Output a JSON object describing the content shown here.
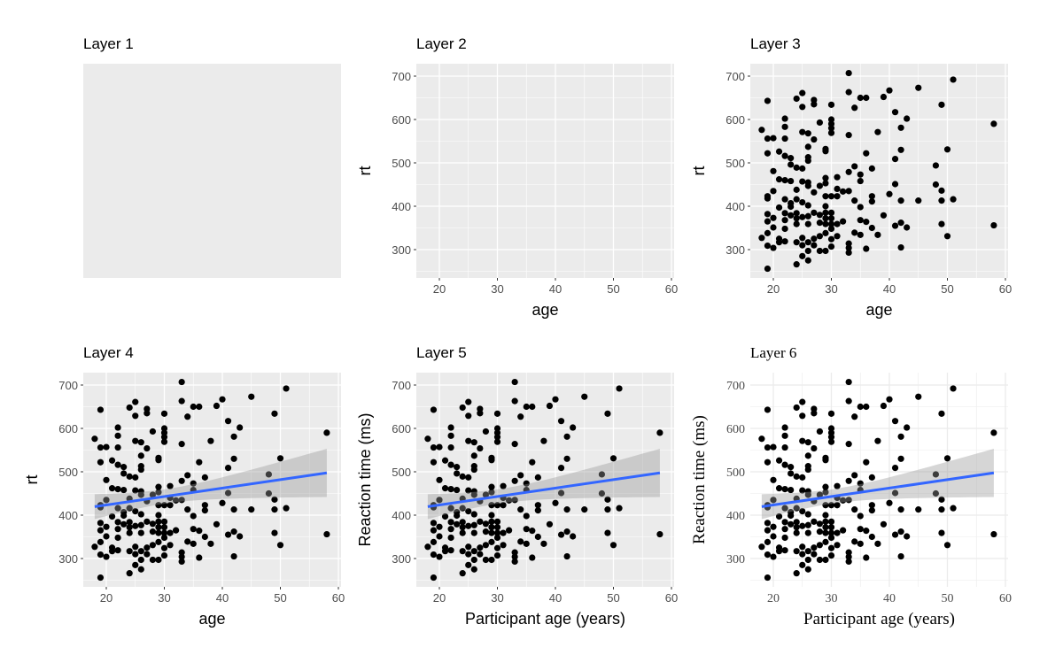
{
  "chart_data": [
    {
      "type": "blank",
      "title": "Layer 1",
      "theme": "grey",
      "axes": false,
      "points": false,
      "smooth": false
    },
    {
      "type": "blank",
      "title": "Layer 2",
      "theme": "grey",
      "axes": true,
      "points": false,
      "smooth": false,
      "xlabel": "age",
      "ylabel": "rt"
    },
    {
      "type": "scatter",
      "title": "Layer 3",
      "theme": "grey",
      "axes": true,
      "points": true,
      "smooth": false,
      "xlabel": "age",
      "ylabel": "rt"
    },
    {
      "type": "scatter",
      "title": "Layer 4",
      "theme": "grey",
      "axes": true,
      "points": true,
      "smooth": true,
      "xlabel": "age",
      "ylabel": "rt"
    },
    {
      "type": "scatter",
      "title": "Layer 5",
      "theme": "grey",
      "axes": true,
      "points": true,
      "smooth": true,
      "xlabel": "Participant age (years)",
      "ylabel": "Reaction time (ms)"
    },
    {
      "type": "scatter",
      "title": "Layer 6",
      "theme": "minimal-serif",
      "axes": true,
      "points": true,
      "smooth": true,
      "xlabel": "Participant age (years)",
      "ylabel": "Reaction time (ms)"
    }
  ],
  "shared": {
    "x_ticks": [
      20,
      30,
      40,
      50,
      60
    ],
    "y_ticks": [
      300,
      400,
      500,
      600,
      700
    ],
    "xlim": [
      16,
      60.5
    ],
    "ylim": [
      235,
      729
    ],
    "grid": true,
    "smooth_method": "lm",
    "smooth_color": "#3366FF",
    "ribbon_color": "#999999",
    "point_color": "#000000",
    "panel_bg_grey": "#EBEBEB",
    "data": {
      "age": [
        33,
        51,
        45,
        40,
        33,
        25,
        39,
        35,
        36,
        19,
        24,
        27,
        27,
        25,
        30,
        34,
        49,
        41,
        43,
        22,
        30,
        30,
        30,
        30,
        28,
        58,
        22,
        18,
        42,
        38,
        25,
        26,
        33,
        19,
        20,
        22,
        27,
        26,
        29,
        29,
        42,
        50,
        19,
        21,
        22,
        23,
        36,
        26,
        26,
        41,
        23,
        24,
        25,
        34,
        37,
        48,
        33,
        20,
        35,
        35,
        31,
        29,
        29,
        21,
        22,
        23,
        25,
        26,
        26,
        41,
        48,
        49,
        28,
        20,
        24,
        27,
        31,
        32,
        33,
        19,
        19,
        40,
        37,
        37,
        29,
        30,
        31,
        22,
        24,
        25,
        26,
        34,
        42,
        45,
        49,
        51,
        23,
        23,
        21,
        29,
        35,
        19,
        19,
        20,
        22,
        22,
        22,
        23,
        24,
        24,
        24,
        25,
        26,
        26,
        27,
        28,
        28,
        29,
        29,
        29,
        30,
        30,
        30,
        30,
        31,
        32,
        39,
        35,
        36,
        37,
        41,
        42,
        43,
        49,
        58,
        20,
        18,
        19,
        19,
        20,
        21,
        21,
        22,
        24,
        25,
        25,
        26,
        26,
        27,
        27,
        28,
        28,
        29,
        29,
        30,
        30,
        31,
        34,
        35,
        38,
        50,
        33,
        33,
        33,
        36,
        42,
        25,
        26,
        24,
        19
      ],
      "rt": [
        707,
        692,
        673,
        667,
        663,
        661,
        652,
        650,
        650,
        643,
        648,
        645,
        635,
        629,
        634,
        627,
        634,
        617,
        602,
        602,
        600,
        590,
        580,
        569,
        593,
        590,
        583,
        576,
        581,
        571,
        571,
        568,
        564,
        556,
        557,
        556,
        554,
        537,
        532,
        527,
        530,
        531,
        522,
        526,
        516,
        511,
        522,
        513,
        505,
        509,
        496,
        489,
        487,
        492,
        487,
        494,
        479,
        481,
        473,
        458,
        467,
        465,
        453,
        462,
        460,
        458,
        457,
        455,
        447,
        451,
        450,
        436,
        447,
        435,
        438,
        432,
        440,
        434,
        435,
        423,
        418,
        428,
        423,
        411,
        423,
        423,
        423,
        416,
        416,
        409,
        402,
        413,
        413,
        413,
        413,
        416,
        407,
        399,
        397,
        400,
        398,
        382,
        365,
        373,
        384,
        368,
        348,
        379,
        384,
        372,
        359,
        375,
        377,
        359,
        385,
        380,
        362,
        385,
        372,
        359,
        385,
        372,
        359,
        348,
        359,
        365,
        379,
        368,
        364,
        350,
        355,
        362,
        351,
        359,
        356,
        351,
        327,
        338,
        309,
        304,
        325,
        317,
        319,
        317,
        327,
        310,
        317,
        297,
        325,
        310,
        331,
        297,
        338,
        297,
        324,
        307,
        331,
        339,
        334,
        334,
        331,
        314,
        304,
        293,
        302,
        305,
        285,
        275,
        266,
        256
      ]
    }
  }
}
